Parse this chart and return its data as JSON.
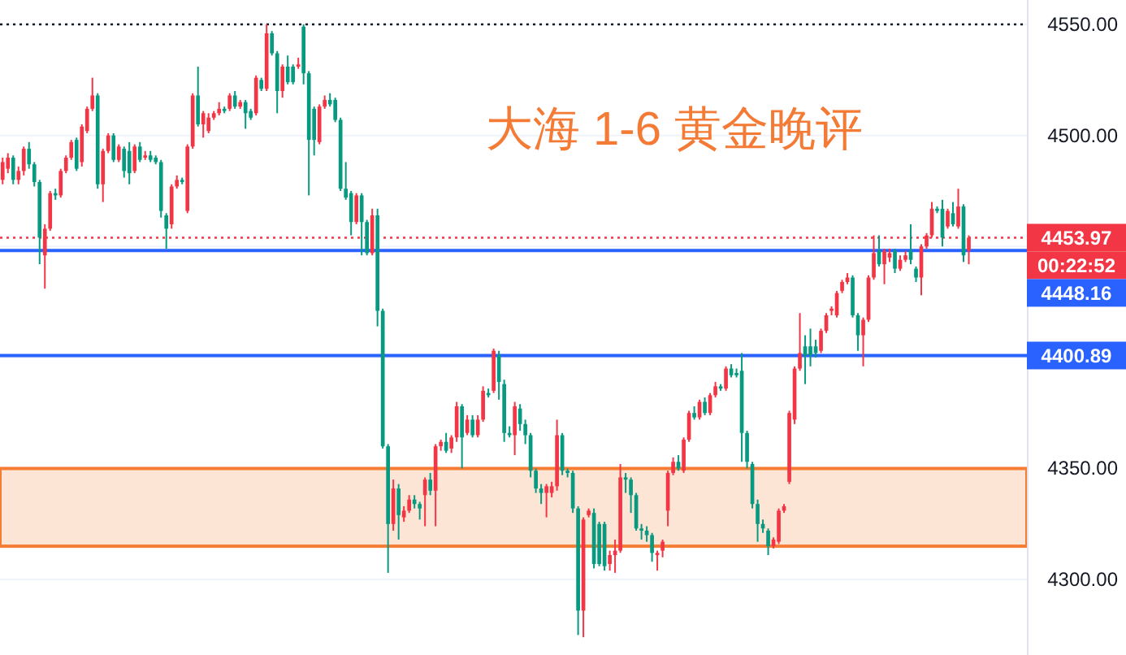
{
  "chart_data": {
    "type": "candlestick",
    "title": "大海 1-6 黄金晚评",
    "categories": [
      null,
      null,
      null,
      null,
      null,
      null,
      null,
      null,
      null,
      null,
      null,
      null,
      null,
      null,
      null,
      null,
      null,
      null,
      null,
      null,
      null,
      null,
      null,
      null,
      null,
      null,
      null,
      null,
      null,
      null,
      null,
      null,
      null,
      null,
      null,
      null,
      null,
      null,
      null,
      null,
      null,
      null,
      null,
      null,
      null,
      null,
      null,
      null,
      null,
      null,
      null,
      null,
      null,
      null,
      null,
      null,
      null,
      null,
      null,
      null,
      null,
      null,
      null,
      null,
      null,
      null,
      null,
      null,
      null,
      null,
      null,
      null,
      null,
      null,
      null,
      null,
      null,
      null,
      null,
      null,
      null,
      null,
      null,
      null,
      null,
      null,
      null,
      null,
      null,
      null,
      null,
      null,
      null,
      null,
      null,
      null,
      null,
      null,
      null,
      null,
      null,
      null,
      null,
      null,
      null,
      null,
      null,
      null,
      null,
      null,
      null,
      null,
      null,
      null,
      null,
      null,
      null,
      null,
      null,
      null,
      null,
      null,
      null,
      null,
      null,
      null,
      null,
      null,
      null,
      null,
      null,
      null,
      null,
      null,
      null,
      null,
      null,
      null,
      null,
      null,
      null,
      null,
      null,
      null,
      null,
      null,
      null,
      null,
      null,
      null,
      null,
      null,
      null,
      null,
      null,
      null,
      null,
      null,
      null,
      null,
      null,
      null,
      null,
      null,
      null,
      null,
      null,
      null,
      null,
      null,
      null,
      null,
      null,
      null,
      null,
      null,
      null,
      null,
      null,
      null,
      null,
      null,
      null,
      null
    ],
    "ohlc": [
      [
        4480,
        4490,
        4478,
        4488
      ],
      [
        4485,
        4492,
        4483,
        4490
      ],
      [
        4490,
        4491,
        4478,
        4480
      ],
      [
        4480,
        4486,
        4478,
        4484
      ],
      [
        4484,
        4495,
        4482,
        4494
      ],
      [
        4494,
        4497,
        4485,
        4487
      ],
      [
        4487,
        4488,
        4477,
        4479
      ],
      [
        4479,
        4480,
        4442,
        4454
      ],
      [
        4446,
        4460,
        4431,
        4458
      ],
      [
        4458,
        4475,
        4457,
        4474
      ],
      [
        4474,
        4476,
        4471,
        4473
      ],
      [
        4473,
        4485,
        4472,
        4484
      ],
      [
        4484,
        4491,
        4483,
        4490
      ],
      [
        4490,
        4498,
        4489,
        4497
      ],
      [
        4498,
        4499,
        4484,
        4485
      ],
      [
        4488,
        4505,
        4486,
        4504
      ],
      [
        4502,
        4513,
        4501,
        4512
      ],
      [
        4512,
        4526,
        4511,
        4518
      ],
      [
        4518,
        4519,
        4476,
        4478
      ],
      [
        4478,
        4494,
        4470,
        4493
      ],
      [
        4493,
        4501,
        4492,
        4500
      ],
      [
        4500,
        4501,
        4488,
        4489
      ],
      [
        4489,
        4496,
        4488,
        4495
      ],
      [
        4494,
        4495,
        4481,
        4484
      ],
      [
        4493,
        4497,
        4478,
        4483
      ],
      [
        4484,
        4496,
        4483,
        4495
      ],
      [
        4495,
        4497,
        4488,
        4489
      ],
      [
        4490,
        4493,
        4489,
        4491
      ],
      [
        4491,
        4493,
        4488,
        4489
      ],
      [
        4490,
        4491,
        4487,
        4488
      ],
      [
        4488,
        4489,
        4463,
        4466
      ],
      [
        4464,
        4465,
        4449,
        4458
      ],
      [
        4460,
        4478,
        4458,
        4477
      ],
      [
        4477,
        4482,
        4476,
        4480
      ],
      [
        4480,
        4481,
        4478,
        4479
      ],
      [
        4466,
        4496,
        4465,
        4495
      ],
      [
        4495,
        4519,
        4494,
        4518
      ],
      [
        4518,
        4531,
        4504,
        4505
      ],
      [
        4505,
        4511,
        4499,
        4510
      ],
      [
        4502,
        4510,
        4501,
        4508
      ],
      [
        4508,
        4511,
        4507,
        4510
      ],
      [
        4510,
        4515,
        4509,
        4512
      ],
      [
        4512,
        4513,
        4510,
        4511
      ],
      [
        4512,
        4519,
        4511,
        4518
      ],
      [
        4518,
        4520,
        4512,
        4513
      ],
      [
        4513,
        4516,
        4512,
        4515
      ],
      [
        4515,
        4516,
        4503,
        4510
      ],
      [
        4511,
        4512,
        4507,
        4508
      ],
      [
        4510,
        4527,
        4509,
        4526
      ],
      [
        4525,
        4526,
        4520,
        4521
      ],
      [
        4521,
        4550,
        4520,
        4546
      ],
      [
        4546,
        4547,
        4536,
        4537
      ],
      [
        4537,
        4538,
        4510,
        4520
      ],
      [
        4520,
        4532,
        4517,
        4531
      ],
      [
        4531,
        4536,
        4523,
        4524
      ],
      [
        4531,
        4532,
        4523,
        4524
      ],
      [
        4531,
        4535,
        4530,
        4532
      ],
      [
        4549,
        4550,
        4523,
        4528
      ],
      [
        4528,
        4529,
        4473,
        4498
      ],
      [
        4512,
        4513,
        4491,
        4498
      ],
      [
        4497,
        4514,
        4496,
        4513
      ],
      [
        4513,
        4518,
        4512,
        4516
      ],
      [
        4516,
        4519,
        4513,
        4514
      ],
      [
        4516,
        4517,
        4506,
        4507
      ],
      [
        4507,
        4508,
        4475,
        4476
      ],
      [
        4476,
        4488,
        4471,
        4472
      ],
      [
        4474,
        4475,
        4455,
        4461
      ],
      [
        4461,
        4474,
        4460,
        4473
      ],
      [
        4473,
        4474,
        4446,
        4461
      ],
      [
        4461,
        4462,
        4446,
        4447
      ],
      [
        4447,
        4467,
        4446,
        4464
      ],
      [
        4464,
        4467,
        4414,
        4421
      ],
      [
        4421,
        4422,
        4359,
        4360
      ],
      [
        4360,
        4361,
        4303,
        4325
      ],
      [
        4325,
        4345,
        4322,
        4341
      ],
      [
        4341,
        4343,
        4318,
        4329
      ],
      [
        4328,
        4333,
        4326,
        4331
      ],
      [
        4331,
        4338,
        4330,
        4336
      ],
      [
        4336,
        4338,
        4332,
        4334
      ],
      [
        4334,
        4335,
        4327,
        4332
      ],
      [
        4338,
        4346,
        4324,
        4345
      ],
      [
        4345,
        4348,
        4338,
        4340
      ],
      [
        4340,
        4361,
        4324,
        4360
      ],
      [
        4360,
        4363,
        4358,
        4362
      ],
      [
        4362,
        4366,
        4357,
        4358
      ],
      [
        4359,
        4365,
        4357,
        4364
      ],
      [
        4364,
        4380,
        4362,
        4378
      ],
      [
        4378,
        4379,
        4350,
        4364
      ],
      [
        4366,
        4374,
        4365,
        4372
      ],
      [
        4372,
        4374,
        4364,
        4365
      ],
      [
        4365,
        4374,
        4364,
        4372
      ],
      [
        4372,
        4387,
        4371,
        4385
      ],
      [
        4384,
        4386,
        4382,
        4383
      ],
      [
        4385,
        4404,
        4384,
        4403
      ],
      [
        4401,
        4403,
        4381,
        4389
      ],
      [
        4388,
        4390,
        4362,
        4366
      ],
      [
        4366,
        4369,
        4364,
        4365
      ],
      [
        4365,
        4380,
        4356,
        4378
      ],
      [
        4377,
        4379,
        4367,
        4370
      ],
      [
        4370,
        4372,
        4361,
        4365
      ],
      [
        4365,
        4366,
        4346,
        4349
      ],
      [
        4349,
        4350,
        4339,
        4341
      ],
      [
        4341,
        4343,
        4334,
        4339
      ],
      [
        4339,
        4343,
        4328,
        4342
      ],
      [
        4339,
        4344,
        4337,
        4342
      ],
      [
        4342,
        4372,
        4340,
        4365
      ],
      [
        4365,
        4366,
        4347,
        4349
      ],
      [
        4349,
        4350,
        4346,
        4348
      ],
      [
        4348,
        4349,
        4330,
        4332
      ],
      [
        4332,
        4333,
        4275,
        4286
      ],
      [
        4286,
        4328,
        4274,
        4327
      ],
      [
        4329,
        4332,
        4328,
        4331
      ],
      [
        4330,
        4332,
        4305,
        4307
      ],
      [
        4325,
        4326,
        4306,
        4307
      ],
      [
        4325,
        4326,
        4304,
        4306
      ],
      [
        4307,
        4313,
        4304,
        4311
      ],
      [
        4311,
        4318,
        4303,
        4313
      ],
      [
        4313,
        4352,
        4312,
        4346
      ],
      [
        4346,
        4348,
        4339,
        4345
      ],
      [
        4345,
        4346,
        4330,
        4338
      ],
      [
        4338,
        4339,
        4322,
        4323
      ],
      [
        4323,
        4325,
        4318,
        4322
      ],
      [
        4322,
        4324,
        4317,
        4320
      ],
      [
        4320,
        4321,
        4308,
        4312
      ],
      [
        4311,
        4313,
        4304,
        4312
      ],
      [
        4313,
        4318,
        4310,
        4317
      ],
      [
        4331,
        4349,
        4324,
        4348
      ],
      [
        4348,
        4355,
        4347,
        4353
      ],
      [
        4353,
        4356,
        4349,
        4350
      ],
      [
        4349,
        4364,
        4348,
        4363
      ],
      [
        4363,
        4376,
        4362,
        4375
      ],
      [
        4375,
        4378,
        4372,
        4373
      ],
      [
        4373,
        4381,
        4372,
        4380
      ],
      [
        4380,
        4382,
        4374,
        4375
      ],
      [
        4375,
        4384,
        4374,
        4383
      ],
      [
        4383,
        4389,
        4382,
        4387
      ],
      [
        4387,
        4388,
        4385,
        4386
      ],
      [
        4386,
        4396,
        4385,
        4395
      ],
      [
        4395,
        4397,
        4391,
        4392
      ],
      [
        4393,
        4395,
        4391,
        4392
      ],
      [
        4394,
        4402,
        4353,
        4366
      ],
      [
        4366,
        4367,
        4350,
        4353
      ],
      [
        4352,
        4353,
        4332,
        4334
      ],
      [
        4334,
        4336,
        4317,
        4325
      ],
      [
        4325,
        4327,
        4321,
        4323
      ],
      [
        4322,
        4323,
        4311,
        4315
      ],
      [
        4315,
        4319,
        4314,
        4318
      ],
      [
        4317,
        4332,
        4316,
        4331
      ],
      [
        4331,
        4334,
        4330,
        4333
      ],
      [
        4344,
        4376,
        4343,
        4375
      ],
      [
        4372,
        4396,
        4370,
        4395
      ],
      [
        4395,
        4420,
        4394,
        4402
      ],
      [
        4405,
        4410,
        4388,
        4401
      ],
      [
        4405,
        4413,
        4396,
        4401
      ],
      [
        4405,
        4408,
        4400,
        4402
      ],
      [
        4403,
        4413,
        4402,
        4412
      ],
      [
        4412,
        4420,
        4411,
        4419
      ],
      [
        4421,
        4423,
        4419,
        4422
      ],
      [
        4419,
        4430,
        4418,
        4429
      ],
      [
        4430,
        4435,
        4429,
        4434
      ],
      [
        4434,
        4438,
        4433,
        4436
      ],
      [
        4436,
        4437,
        4418,
        4419
      ],
      [
        4419,
        4420,
        4403,
        4410
      ],
      [
        4410,
        4418,
        4396,
        4417
      ],
      [
        4417,
        4437,
        4416,
        4436
      ],
      [
        4436,
        4455,
        4435,
        4447
      ],
      [
        4448,
        4455,
        4441,
        4442
      ],
      [
        4442,
        4449,
        4433,
        4448
      ],
      [
        4445,
        4449,
        4443,
        4447
      ],
      [
        4448,
        4449,
        4438,
        4440
      ],
      [
        4440,
        4446,
        4439,
        4444
      ],
      [
        4444,
        4448,
        4443,
        4446
      ],
      [
        4448,
        4460,
        4442,
        4444
      ],
      [
        4440,
        4441,
        4434,
        4436
      ],
      [
        4436,
        4451,
        4428,
        4450
      ],
      [
        4450,
        4456,
        4449,
        4455
      ],
      [
        4455,
        4470,
        4454,
        4467
      ],
      [
        4467,
        4468,
        4465,
        4466
      ],
      [
        4467,
        4471,
        4450,
        4454
      ],
      [
        4459,
        4467,
        4458,
        4466
      ],
      [
        4465,
        4470,
        4459,
        4460
      ],
      [
        4459,
        4476,
        4458,
        4468
      ],
      [
        4468,
        4469,
        4443,
        4446
      ],
      [
        4448,
        4455,
        4442,
        4453.97
      ]
    ],
    "colors": [
      "#f23645",
      "#f23645",
      "#089981",
      "#f23645",
      "#f23645",
      "#089981",
      "#089981",
      "#089981",
      "#f23645",
      "#f23645",
      "#089981",
      "#f23645",
      "#f23645",
      "#f23645",
      "#089981",
      "#f23645",
      "#f23645",
      "#f23645",
      "#089981",
      "#f23645",
      "#f23645",
      "#089981",
      "#f23645",
      "#089981",
      "#089981",
      "#f23645",
      "#089981",
      "#f23645",
      "#089981",
      "#089981",
      "#089981",
      "#089981",
      "#f23645",
      "#f23645",
      "#089981",
      "#f23645",
      "#f23645",
      "#089981",
      "#f23645",
      "#f23645",
      "#f23645",
      "#f23645",
      "#089981",
      "#f23645",
      "#089981",
      "#f23645",
      "#089981",
      "#089981",
      "#f23645",
      "#089981",
      "#f23645",
      "#089981",
      "#089981",
      "#f23645",
      "#089981",
      "#089981",
      "#f23645",
      "#089981",
      "#089981",
      "#089981",
      "#f23645",
      "#f23645",
      "#089981",
      "#089981",
      "#089981",
      "#089981",
      "#089981",
      "#f23645",
      "#089981",
      "#089981",
      "#f23645",
      "#089981",
      "#089981",
      "#089981",
      "#f23645",
      "#089981",
      "#f23645",
      "#f23645",
      "#089981",
      "#089981",
      "#f23645",
      "#089981",
      "#f23645",
      "#f23645",
      "#089981",
      "#f23645",
      "#f23645",
      "#089981",
      "#f23645",
      "#089981",
      "#f23645",
      "#f23645",
      "#089981",
      "#f23645",
      "#089981",
      "#089981",
      "#089981",
      "#f23645",
      "#089981",
      "#089981",
      "#089981",
      "#089981",
      "#089981",
      "#f23645",
      "#f23645",
      "#f23645",
      "#089981",
      "#089981",
      "#089981",
      "#089981",
      "#f23645",
      "#f23645",
      "#089981",
      "#089981",
      "#089981",
      "#f23645",
      "#f23645",
      "#f23645",
      "#089981",
      "#089981",
      "#089981",
      "#089981",
      "#089981",
      "#089981",
      "#f23645",
      "#f23645",
      "#f23645",
      "#f23645",
      "#089981",
      "#f23645",
      "#f23645",
      "#089981",
      "#f23645",
      "#089981",
      "#f23645",
      "#f23645",
      "#089981",
      "#f23645",
      "#089981",
      "#089981",
      "#089981",
      "#089981",
      "#089981",
      "#089981",
      "#089981",
      "#089981",
      "#f23645",
      "#f23645",
      "#f23645",
      "#f23645",
      "#f23645",
      "#f23645",
      "#089981",
      "#089981",
      "#089981",
      "#f23645",
      "#f23645",
      "#f23645",
      "#f23645",
      "#f23645",
      "#f23645",
      "#089981",
      "#089981",
      "#f23645",
      "#f23645",
      "#f23645",
      "#089981",
      "#f23645",
      "#f23645",
      "#089981",
      "#f23645",
      "#f23645",
      "#089981",
      "#089981",
      "#f23645",
      "#f23645",
      "#f23645",
      "#089981",
      "#089981",
      "#f23645",
      "#089981",
      "#f23645",
      "#089981",
      "#f23645"
    ],
    "ylim": [
      4266,
      4561
    ],
    "yticks": [
      {
        "value": 4300,
        "label": "4300.00"
      },
      {
        "value": 4350,
        "label": "4350.00"
      },
      {
        "value": 4400,
        "label": null
      },
      {
        "value": 4450,
        "label": null
      },
      {
        "value": 4500,
        "label": "4500.00"
      },
      {
        "value": 4550,
        "label": "4550.00"
      }
    ],
    "grid": "y",
    "ref_lines": [
      {
        "axis": "y",
        "value": 4550,
        "color": "#131722",
        "line_style": "dotted"
      },
      {
        "axis": "y",
        "value": 4453.97,
        "label": "4453.97",
        "color": "#f23645",
        "line_style": "dotted"
      },
      {
        "axis": "y",
        "value": 4448.16,
        "label": "4448.16",
        "color": "#2962ff",
        "line_style": "solid"
      },
      {
        "axis": "y",
        "value": 4400.89,
        "label": "4400.89",
        "color": "#2962ff",
        "line_style": "solid"
      }
    ],
    "bands": [
      {
        "axis": "y",
        "from": 4315,
        "to": 4350,
        "color": "#f57c32"
      }
    ],
    "annotations": [
      "00:22:52"
    ]
  }
}
